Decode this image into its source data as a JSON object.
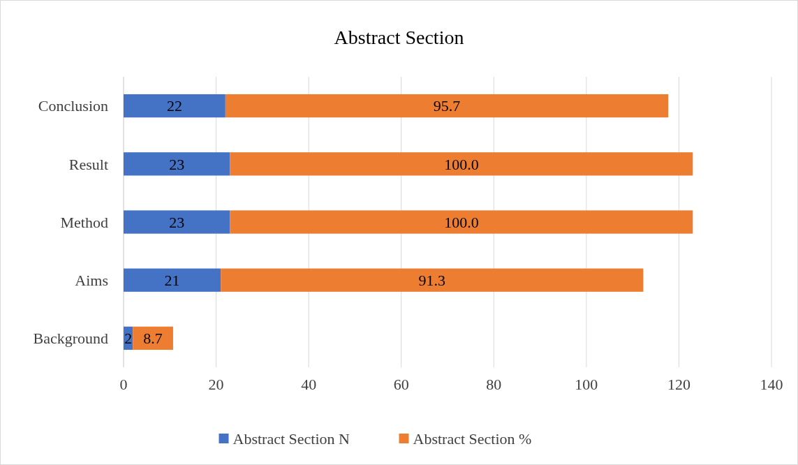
{
  "chart_data": {
    "type": "bar",
    "title": "Abstract Section",
    "orientation": "horizontal",
    "stacked": true,
    "categories": [
      "Conclusion",
      "Result",
      "Method",
      "Aims",
      "Background"
    ],
    "series": [
      {
        "name": "Abstract Section N",
        "color": "#4472c4",
        "values": [
          22,
          23,
          23,
          21,
          2
        ],
        "value_labels": [
          "22",
          "23",
          "23",
          "21",
          "2"
        ]
      },
      {
        "name": "Abstract Section %",
        "color": "#ed7d31",
        "values": [
          95.7,
          100.0,
          100.0,
          91.3,
          8.7
        ],
        "value_labels": [
          "95.7",
          "100.0",
          "100.0",
          "91.3",
          "8.7"
        ]
      }
    ],
    "xlim": [
      0,
      140
    ],
    "xticks": [
      0,
      20,
      40,
      60,
      80,
      100,
      120,
      140
    ],
    "grid": "x",
    "legend": "bottom"
  }
}
